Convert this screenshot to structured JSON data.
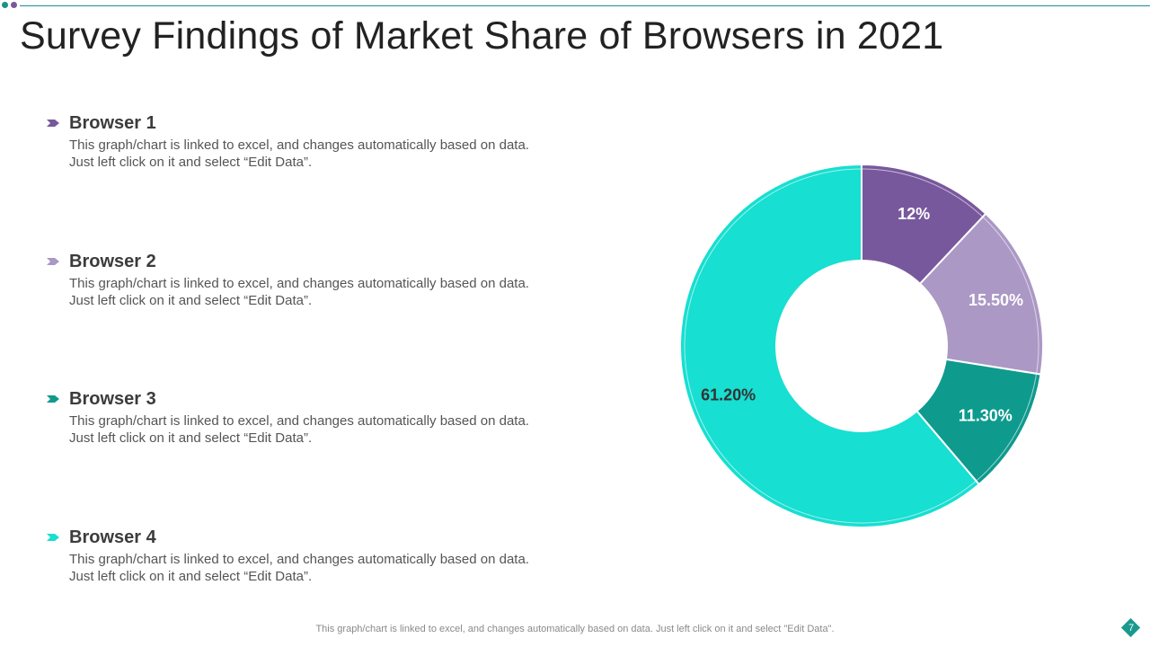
{
  "slide": {
    "title": "Survey Findings of Market Share of Browsers in 2021",
    "footer": "This graph/chart is linked to excel,  and changes automatically based on data. Just left click on it and select \"Edit Data\".",
    "page_number": "7"
  },
  "legend": [
    {
      "name": "Browser 1",
      "description": "This graph/chart  is linked to excel,  and changes automatically  based on data. Just left click on it and select “Edit Data”."
    },
    {
      "name": "Browser 2",
      "description": "This graph/chart  is linked to excel,  and changes automatically  based on data. Just left click on it and select “Edit Data”."
    },
    {
      "name": "Browser 3",
      "description": "This graph/chart  is linked to excel,  and changes automatically  based on data. Just left click on it and select “Edit Data”."
    },
    {
      "name": "Browser 4",
      "description": "This graph/chart  is linked to excel,  and changes automatically  based on data. Just left click on it and select “Edit Data”."
    }
  ],
  "colors": {
    "browser1": "#78589d",
    "browser2": "#ab98c5",
    "browser3": "#0f9a8e",
    "browser4": "#17dfd1",
    "accent": "#1a9a8f"
  },
  "chart_data": {
    "type": "pie",
    "variant": "donut",
    "title": "",
    "categories": [
      "Browser 1",
      "Browser 2",
      "Browser 3",
      "Browser 4"
    ],
    "values": [
      12,
      15.5,
      11.3,
      61.2
    ],
    "labels": [
      "12%",
      "15.50%",
      "11.30%",
      "61.20%"
    ],
    "label_colors": [
      "#ffffff",
      "#ffffff",
      "#ffffff",
      "#333333"
    ]
  }
}
